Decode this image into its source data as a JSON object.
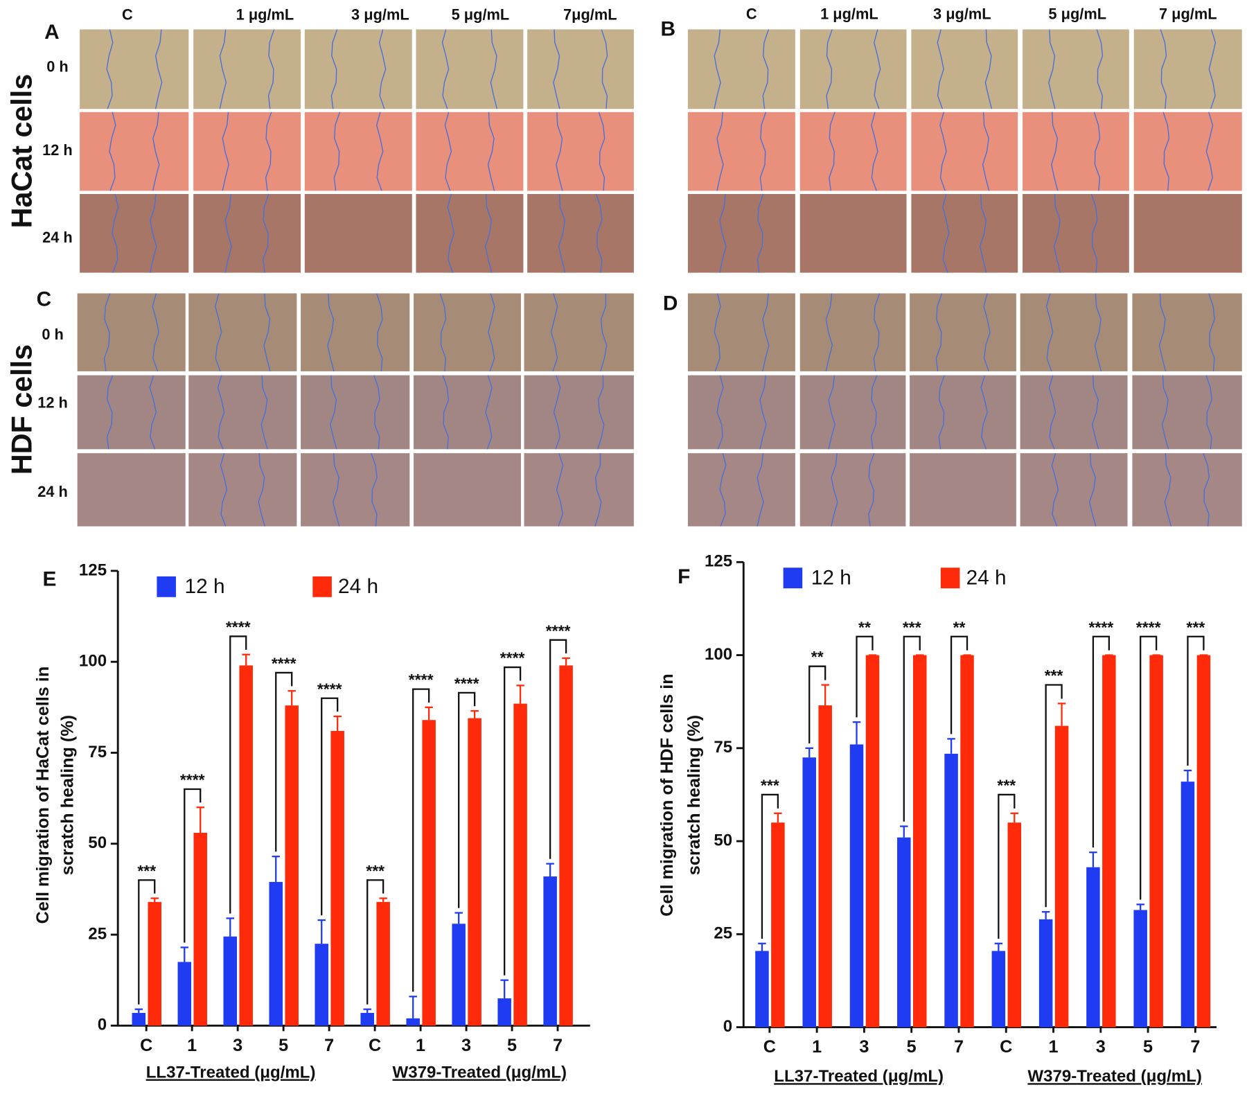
{
  "image_panels": {
    "panel_labels": [
      "A",
      "B",
      "C",
      "D"
    ],
    "column_labels_A": [
      "C",
      "1 μg/mL",
      "3 μg/mL",
      "5 μg/mL",
      "7μg/mL"
    ],
    "column_labels_B": [
      "C",
      "1 μg/mL",
      "3 μg/mL",
      "5 μg/mL",
      "7 μg/mL"
    ],
    "row_labels": [
      "0 h",
      "12 h",
      "24 h"
    ],
    "cell_types": [
      "HaCat cells",
      "HDF cells"
    ]
  },
  "chart_data": [
    {
      "type": "bar",
      "panel_label": "E",
      "ylabel": [
        "Cell migration of HaCat cells in",
        "scratch healing (%)"
      ],
      "categories": [
        "C",
        "1",
        "3",
        "5",
        "7",
        "C",
        "1",
        "3",
        "5",
        "7"
      ],
      "group_labels": [
        "LL37-Treated (μg/mL)",
        "W379-Treated (μg/mL)"
      ],
      "series": [
        {
          "name": "12 h",
          "color": "#1f3cf2",
          "values": [
            3.5,
            17.5,
            24.5,
            39.5,
            22.5,
            3.5,
            2,
            28,
            7.5,
            41
          ],
          "errors": [
            1,
            4,
            5,
            7,
            6.5,
            1,
            6,
            3,
            5,
            3.5
          ]
        },
        {
          "name": "24 h",
          "color": "#ff2a0a",
          "values": [
            34,
            53,
            99,
            88,
            81,
            34,
            84,
            84.5,
            88.5,
            99
          ],
          "errors": [
            1,
            7,
            3,
            4,
            4,
            1,
            3.5,
            2,
            5,
            2
          ]
        }
      ],
      "significance": [
        "***",
        "****",
        "****",
        "****",
        "****",
        "***",
        "****",
        "****",
        "****",
        "****"
      ],
      "ylim": [
        0,
        125
      ],
      "yticks": [
        0,
        25,
        50,
        75,
        100,
        125
      ],
      "legend": "top-left"
    },
    {
      "type": "bar",
      "panel_label": "F",
      "ylabel": [
        "Cell migration of HDF cells in",
        "scratch healing (%)"
      ],
      "categories": [
        "C",
        "1",
        "3",
        "5",
        "7",
        "C",
        "1",
        "3",
        "5",
        "7"
      ],
      "group_labels": [
        "LL37-Treated (μg/mL)",
        "W379-Treated (μg/mL)"
      ],
      "series": [
        {
          "name": "12 h",
          "color": "#1f3cf2",
          "values": [
            20.5,
            72.5,
            76,
            51,
            73.5,
            20.5,
            29,
            43,
            31.5,
            66
          ],
          "errors": [
            2,
            2.5,
            6,
            3,
            4,
            2,
            2,
            4,
            1.5,
            3
          ]
        },
        {
          "name": "24 h",
          "color": "#ff2a0a",
          "values": [
            55,
            86.5,
            100,
            100,
            100,
            55,
            81,
            100,
            100,
            100
          ],
          "errors": [
            2.5,
            5.5,
            0,
            0,
            0,
            2.5,
            6,
            0,
            0,
            0
          ]
        }
      ],
      "significance": [
        "***",
        "**",
        "**",
        "***",
        "**",
        "***",
        "***",
        "****",
        "****",
        "***"
      ],
      "ylim": [
        0,
        125
      ],
      "yticks": [
        0,
        25,
        50,
        75,
        100,
        125
      ],
      "legend": "top-left"
    }
  ]
}
